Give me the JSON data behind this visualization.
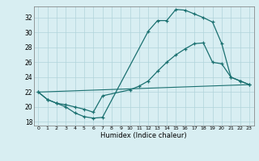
{
  "title": "",
  "xlabel": "Humidex (Indice chaleur)",
  "xlim": [
    -0.5,
    23.5
  ],
  "ylim": [
    17.5,
    33.5
  ],
  "xticks": [
    0,
    1,
    2,
    3,
    4,
    5,
    6,
    7,
    8,
    9,
    10,
    11,
    12,
    13,
    14,
    15,
    16,
    17,
    18,
    19,
    20,
    21,
    22,
    23
  ],
  "yticks": [
    18,
    20,
    22,
    24,
    26,
    28,
    30,
    32
  ],
  "bg_color": "#d8eef2",
  "grid_color": "#b0d4da",
  "line_color": "#1a7070",
  "line1_x": [
    0,
    1,
    2,
    3,
    4,
    5,
    6,
    7,
    12,
    13,
    14,
    15,
    16,
    17,
    18,
    19,
    20,
    21,
    22,
    23
  ],
  "line1_y": [
    22,
    21,
    20.5,
    20,
    19.2,
    18.7,
    18.5,
    18.6,
    30.2,
    31.6,
    31.6,
    33.1,
    33.0,
    32.5,
    32.0,
    31.4,
    28.5,
    24.0,
    23.5,
    23.0
  ],
  "line2_x": [
    0,
    1,
    2,
    3,
    4,
    5,
    6,
    7,
    10,
    11,
    12,
    13,
    14,
    15,
    16,
    17,
    18,
    19,
    20,
    21,
    22,
    23
  ],
  "line2_y": [
    22,
    21,
    20.5,
    20.3,
    20.0,
    19.7,
    19.3,
    21.5,
    22.3,
    22.8,
    23.5,
    24.8,
    26.0,
    27.0,
    27.8,
    28.5,
    28.6,
    26.0,
    25.8,
    24.0,
    23.5,
    23.0
  ],
  "line3_x": [
    0,
    23
  ],
  "line3_y": [
    22,
    23.0
  ]
}
